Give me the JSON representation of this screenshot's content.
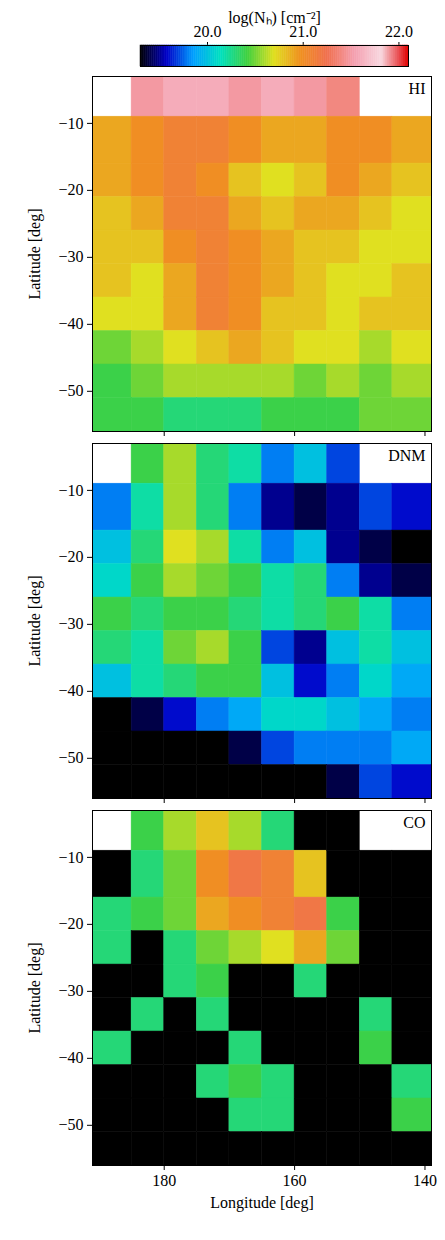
{
  "chart_data": [
    {
      "type": "heatmap",
      "title": "HI",
      "ylabel": "Latitude [deg]",
      "xlim": [
        191,
        139
      ],
      "ylim": [
        -56,
        -3
      ],
      "xticks": [
        180,
        160,
        140
      ],
      "yticks": [
        -10,
        -20,
        -30,
        -40,
        -50
      ],
      "tick_labels": "y",
      "lon_edges": [
        191,
        185,
        180,
        175,
        170,
        165,
        160,
        155,
        150,
        145,
        139
      ],
      "lat_edges": [
        -3,
        -9,
        -16,
        -21,
        -26,
        -31,
        -36,
        -41,
        -46,
        -51,
        -56
      ],
      "values": [
        [
          null,
          21.5,
          21.6,
          21.6,
          21.5,
          21.6,
          21.5,
          21.4,
          null,
          null
        ],
        [
          20.9,
          21.0,
          21.1,
          21.1,
          21.0,
          20.9,
          20.9,
          21.0,
          21.0,
          20.9
        ],
        [
          20.9,
          21.0,
          21.1,
          21.0,
          20.8,
          20.7,
          20.8,
          21.0,
          20.9,
          20.8
        ],
        [
          20.8,
          20.9,
          21.1,
          21.1,
          20.9,
          20.8,
          20.9,
          20.9,
          20.8,
          20.7
        ],
        [
          20.8,
          20.8,
          21.0,
          21.1,
          21.0,
          20.9,
          20.8,
          20.8,
          20.7,
          20.7
        ],
        [
          20.8,
          20.7,
          20.9,
          21.1,
          21.0,
          20.9,
          20.8,
          20.7,
          20.7,
          20.8
        ],
        [
          20.7,
          20.7,
          20.9,
          21.1,
          21.0,
          20.8,
          20.8,
          20.7,
          20.8,
          20.8
        ],
        [
          20.5,
          20.6,
          20.7,
          20.8,
          20.9,
          20.8,
          20.7,
          20.7,
          20.6,
          20.7
        ],
        [
          20.4,
          20.5,
          20.6,
          20.6,
          20.6,
          20.6,
          20.5,
          20.6,
          20.5,
          20.6
        ],
        [
          20.4,
          20.4,
          20.3,
          20.3,
          20.3,
          20.4,
          20.4,
          20.4,
          20.5,
          20.5
        ]
      ],
      "colorbar": {
        "label": "log(Nₕ) [cm⁻²]",
        "range": [
          19.3,
          22.1
        ],
        "ticks": [
          20,
          21,
          22
        ],
        "colors": [
          "#000000",
          "#0000c8",
          "#00a0ff",
          "#00e0c0",
          "#40d040",
          "#e0e020",
          "#f09020",
          "#f07050",
          "#f4a0b0",
          "#f8d8e0",
          "#e00000"
        ]
      }
    },
    {
      "type": "heatmap",
      "title": "DNM",
      "ylabel": "Latitude [deg]",
      "xlim": [
        191,
        139
      ],
      "ylim": [
        -56,
        -3
      ],
      "xticks": [
        180,
        160,
        140
      ],
      "yticks": [
        -10,
        -20,
        -30,
        -40,
        -50
      ],
      "tick_labels": "y",
      "lon_edges": [
        191,
        185,
        180,
        175,
        170,
        165,
        160,
        155,
        150,
        145,
        139
      ],
      "lat_edges": [
        -3,
        -9,
        -16,
        -21,
        -26,
        -31,
        -36,
        -41,
        -46,
        -51,
        -56
      ],
      "values": [
        [
          null,
          20.4,
          20.6,
          20.3,
          20.2,
          19.8,
          20.0,
          19.7,
          null,
          null
        ],
        [
          19.8,
          20.2,
          20.6,
          20.3,
          19.8,
          19.5,
          19.4,
          19.5,
          19.7,
          19.6
        ],
        [
          20.0,
          20.3,
          20.7,
          20.6,
          20.2,
          19.8,
          20.0,
          19.5,
          19.4,
          19.3
        ],
        [
          20.1,
          20.4,
          20.6,
          20.5,
          20.4,
          20.2,
          20.3,
          19.8,
          19.5,
          19.4
        ],
        [
          20.4,
          20.3,
          20.4,
          20.4,
          20.3,
          20.2,
          20.3,
          20.4,
          20.2,
          19.8
        ],
        [
          20.3,
          20.2,
          20.5,
          20.6,
          20.4,
          19.7,
          19.5,
          20.0,
          20.2,
          20.0
        ],
        [
          20.0,
          20.2,
          20.3,
          20.4,
          20.4,
          20.0,
          19.6,
          19.8,
          20.1,
          19.9
        ],
        [
          19.3,
          19.4,
          19.6,
          19.8,
          19.9,
          20.1,
          20.1,
          20.0,
          19.9,
          19.8
        ],
        [
          19.3,
          19.3,
          19.3,
          19.3,
          19.4,
          19.7,
          19.8,
          19.8,
          19.8,
          19.9
        ],
        [
          19.3,
          19.3,
          19.3,
          19.3,
          19.3,
          19.3,
          19.3,
          19.4,
          19.7,
          19.6
        ]
      ]
    },
    {
      "type": "heatmap",
      "title": "CO",
      "xlabel": "Longitude [deg]",
      "ylabel": "Latitude [deg]",
      "xlim": [
        191,
        139
      ],
      "ylim": [
        -56,
        -3
      ],
      "xticks": [
        180,
        160,
        140
      ],
      "yticks": [
        -10,
        -20,
        -30,
        -40,
        -50
      ],
      "tick_labels": true,
      "lon_edges": [
        191,
        185,
        180,
        175,
        170,
        165,
        160,
        155,
        150,
        145,
        139
      ],
      "lat_edges": [
        -3,
        -9,
        -16,
        -21,
        -26,
        -31,
        -36,
        -41,
        -46,
        -51,
        -56
      ],
      "values": [
        [
          null,
          20.4,
          20.6,
          20.8,
          20.6,
          20.3,
          19.3,
          19.3,
          null,
          null
        ],
        [
          19.3,
          20.3,
          20.5,
          21.0,
          21.2,
          21.1,
          20.8,
          19.3,
          19.3,
          19.3
        ],
        [
          20.3,
          20.4,
          20.5,
          20.9,
          21.0,
          21.1,
          21.2,
          20.4,
          19.3,
          19.3
        ],
        [
          20.3,
          19.3,
          20.3,
          20.5,
          20.6,
          20.7,
          20.9,
          20.5,
          19.3,
          19.3
        ],
        [
          19.3,
          19.3,
          20.3,
          20.4,
          19.3,
          19.3,
          20.3,
          19.3,
          19.3,
          19.3
        ],
        [
          19.3,
          20.3,
          19.3,
          20.3,
          19.3,
          19.3,
          19.3,
          19.3,
          20.3,
          19.3
        ],
        [
          20.3,
          19.3,
          19.3,
          19.3,
          20.3,
          19.3,
          19.3,
          19.3,
          20.4,
          19.3
        ],
        [
          19.3,
          19.3,
          19.3,
          20.3,
          20.4,
          20.3,
          19.3,
          19.3,
          19.3,
          20.3
        ],
        [
          19.3,
          19.3,
          19.3,
          19.3,
          20.3,
          20.3,
          19.3,
          19.3,
          19.3,
          20.4
        ],
        [
          19.3,
          19.3,
          19.3,
          19.3,
          19.3,
          19.3,
          19.3,
          19.3,
          19.3,
          19.3
        ]
      ]
    }
  ]
}
